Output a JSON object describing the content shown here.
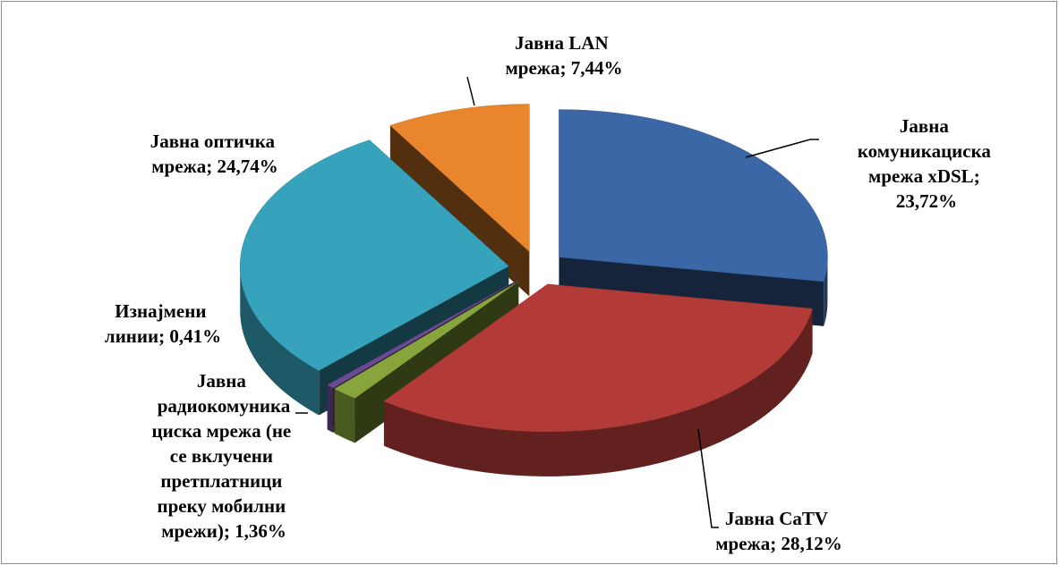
{
  "chart_data": {
    "type": "pie",
    "categories": [
      "Јавна комуникациска мрежа xDSL",
      "Јавна CaTV мрежа",
      "Јавна радиокомуникациска мрежа (не се вклучени претплатници преку мобилни мрежи)",
      "Изнајмени линии",
      "Јавна оптичка мрежа",
      "Јавна LAN мрежа"
    ],
    "values": [
      23.72,
      28.12,
      1.36,
      0.41,
      24.74,
      7.44
    ],
    "value_labels": [
      "23,72%",
      "28,12%",
      "1,36%",
      "0,41%",
      "24,74%",
      "7,44%"
    ],
    "label_separator": "; ",
    "colors": [
      "#3b67a6",
      "#b23b37",
      "#87a53c",
      "#6c4a93",
      "#37a2bc",
      "#e9852c"
    ]
  }
}
